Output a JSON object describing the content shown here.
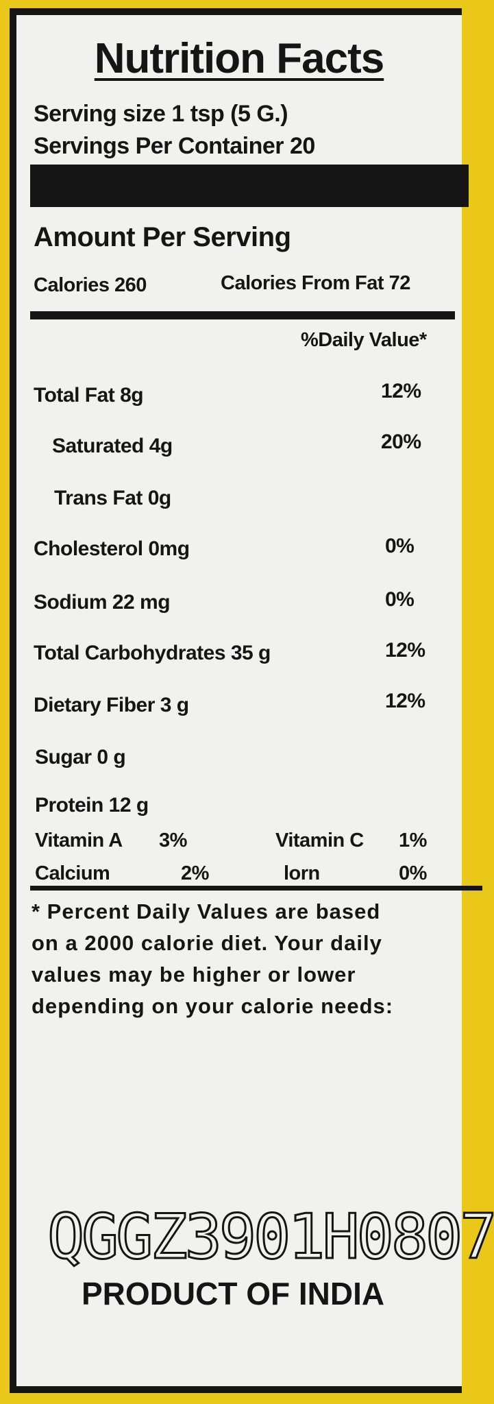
{
  "title": "Nutrition Facts",
  "serving_size": "Serving size 1 tsp (5 G.)",
  "servings_per_container": "Servings Per Container  20",
  "amount_per_serving": "Amount Per Serving",
  "calories": "Calories 260",
  "calories_from_fat": "Calories From Fat 72",
  "daily_value_header": "%Daily Value*",
  "nutrients": [
    {
      "label": "Total Fat 8g",
      "dv": "12%"
    },
    {
      "label": "Saturated  4g",
      "dv": "20%"
    },
    {
      "label": "Trans Fat 0g",
      "dv": ""
    },
    {
      "label": "Cholesterol 0mg",
      "dv": "0%"
    },
    {
      "label": "Sodium 22 mg",
      "dv": "0%"
    },
    {
      "label": "Total Carbohydrates 35 g",
      "dv": "12%"
    },
    {
      "label": "Dietary Fiber 3 g",
      "dv": "12%"
    },
    {
      "label": "Sugar 0 g",
      "dv": ""
    },
    {
      "label": "Protein 12 g",
      "dv": ""
    }
  ],
  "vitamins": [
    {
      "label": "Vitamin A",
      "value": "3%"
    },
    {
      "label": "Vitamin C",
      "value": "1%"
    },
    {
      "label": "Calcium",
      "value": "2%"
    },
    {
      "label": "lorn",
      "value": "0%"
    }
  ],
  "footnote": [
    "* Percent Daily Values are based",
    "on a 2000 calorie diet. Your daily",
    "values may be higher or lower",
    "depending on your calorie needs:"
  ],
  "batch_code": "QGGZ3901H0807",
  "origin": "PRODUCT OF INDIA"
}
